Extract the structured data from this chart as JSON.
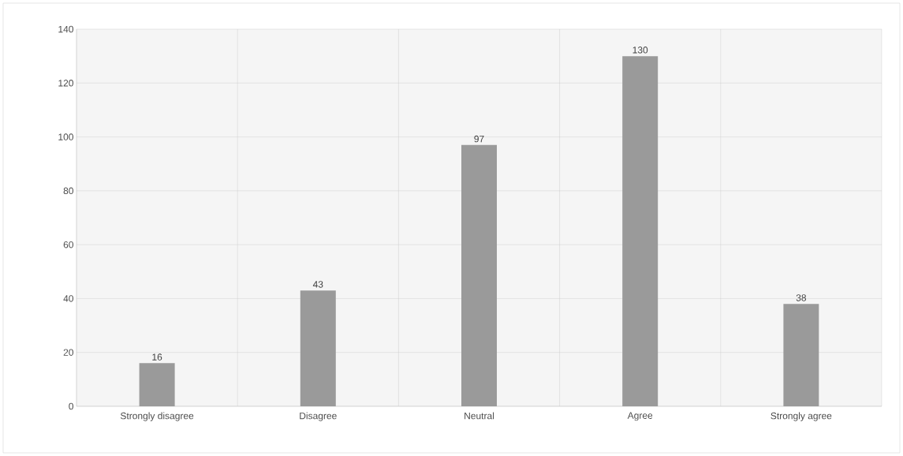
{
  "chart_data": {
    "type": "bar",
    "categories": [
      "Strongly disagree",
      "Disagree",
      "Neutral",
      "Agree",
      "Strongly agree"
    ],
    "values": [
      16,
      43,
      97,
      130,
      38
    ],
    "color": "#9a9a9a",
    "ylim": [
      0,
      140
    ],
    "yticks": [
      0,
      20,
      40,
      60,
      80,
      100,
      120,
      140
    ],
    "grid": true,
    "data_labels": true
  }
}
